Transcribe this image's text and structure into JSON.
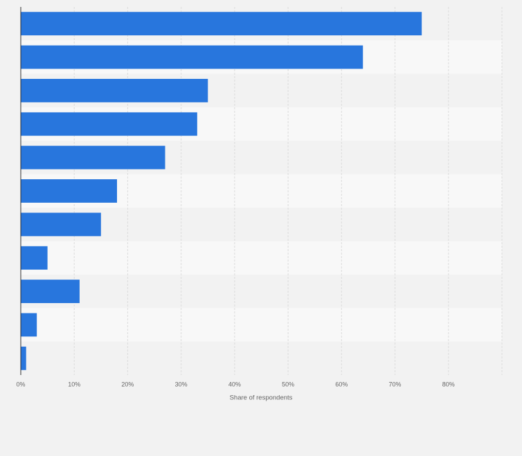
{
  "chart_data": {
    "type": "bar",
    "orientation": "horizontal",
    "x_label": "Share of respondents",
    "categories": [
      null,
      null,
      null,
      null,
      null,
      null,
      null,
      null,
      null,
      null,
      null
    ],
    "values": [
      75,
      64,
      35,
      33,
      27,
      18,
      15,
      5,
      11,
      3,
      1
    ],
    "color": "#2876dd",
    "xlim": [
      0,
      90
    ],
    "xticks": [
      {
        "value": 0,
        "label": "0%"
      },
      {
        "value": 10,
        "label": "10%"
      },
      {
        "value": 20,
        "label": "20%"
      },
      {
        "value": 30,
        "label": "30%"
      },
      {
        "value": 40,
        "label": "40%"
      },
      {
        "value": 50,
        "label": "50%"
      },
      {
        "value": 60,
        "label": "60%"
      },
      {
        "value": 70,
        "label": "70%"
      },
      {
        "value": 80,
        "label": "80%"
      }
    ],
    "grid": true
  }
}
